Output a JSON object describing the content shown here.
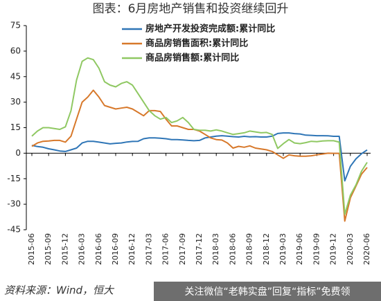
{
  "chart_data": {
    "type": "line",
    "title": "图表：6月房地产销售和投资继续回升",
    "source": "资料来源：Wind，恒大",
    "watermark": "关注微信“老韩实盘”回复“指标”免费领",
    "categories": [
      "2015-06",
      null,
      null,
      "2015-09",
      null,
      null,
      "2015-12",
      null,
      null,
      "2016-03",
      null,
      null,
      "2016-06",
      null,
      null,
      "2016-09",
      null,
      null,
      "2016-12",
      null,
      null,
      "2017-03",
      null,
      null,
      "2017-06",
      null,
      null,
      "2017-09",
      null,
      null,
      "2017-12",
      null,
      null,
      "2018-03",
      null,
      null,
      "2018-06",
      null,
      null,
      "2018-09",
      null,
      null,
      "2018-12",
      null,
      null,
      "2019-03",
      null,
      null,
      "2019-06",
      null,
      null,
      "2019-09",
      null,
      null,
      "2019-12",
      null,
      null,
      "2020-03",
      null,
      null,
      "2020-06"
    ],
    "series": [
      {
        "name": "房地产开发投资完成额:累计同比",
        "color": "#2e75b6",
        "values": [
          4.6,
          3.9,
          3.5,
          2.6,
          2,
          1.3,
          1,
          2,
          3,
          6,
          7,
          7,
          6.5,
          6,
          5.5,
          5.8,
          6,
          6.6,
          6.9,
          7,
          8.5,
          9,
          9,
          8.8,
          8.5,
          8,
          8,
          7.8,
          7.5,
          7.3,
          7.5,
          9,
          9.5,
          10,
          10.3,
          10,
          9.7,
          9.5,
          9.9,
          9.6,
          9.7,
          9.5,
          9.5,
          10,
          11.6,
          11.9,
          11.9,
          11.5,
          11.3,
          10.6,
          10.5,
          10.3,
          10.3,
          10.2,
          9.9,
          9.9,
          -16.3,
          -7.7,
          -3.3,
          -0.3,
          1.9
        ]
      },
      {
        "name": "商品房销售面积:累计同比",
        "color": "#d7782a",
        "values": [
          4,
          6,
          7,
          7.2,
          7.5,
          7.5,
          6.5,
          10,
          20,
          30,
          33,
          37,
          33,
          28,
          27,
          26,
          26.5,
          27,
          26,
          24,
          22,
          25,
          25,
          24.5,
          20,
          16,
          16,
          15,
          14,
          14,
          13,
          11,
          9,
          8,
          7.7,
          6,
          3,
          4,
          3.5,
          4.3,
          3,
          2.5,
          2,
          1,
          -1,
          -3,
          -1,
          -1.5,
          -1.8,
          -1.8,
          -1.5,
          -1,
          -0.5,
          0,
          -0.1,
          -0.1,
          -39.9,
          -26.3,
          -19.3,
          -12.3,
          -8.4
        ]
      },
      {
        "name": "商品房销售额:累计同比",
        "color": "#8fc862",
        "values": [
          10,
          13,
          15,
          15,
          14.5,
          14,
          15.5,
          25,
          43,
          54,
          56,
          55,
          50,
          42,
          40,
          39,
          41,
          42,
          40,
          35,
          30,
          25,
          22,
          20,
          21,
          18,
          19,
          21,
          18,
          14,
          13.5,
          13.5,
          13,
          13.7,
          13,
          12,
          11,
          11.5,
          12,
          13,
          12.5,
          12,
          12.2,
          11,
          2.8,
          5.6,
          8,
          6,
          5.6,
          6.2,
          7,
          6.8,
          7.2,
          7.3,
          7.3,
          6.5,
          -35.9,
          -24.7,
          -18.6,
          -10.6,
          -5.4
        ]
      }
    ],
    "ylim": [
      -45,
      75
    ],
    "yticks": [
      -45,
      -30,
      -15,
      0,
      15,
      30,
      45,
      60,
      75
    ],
    "grid": false
  }
}
